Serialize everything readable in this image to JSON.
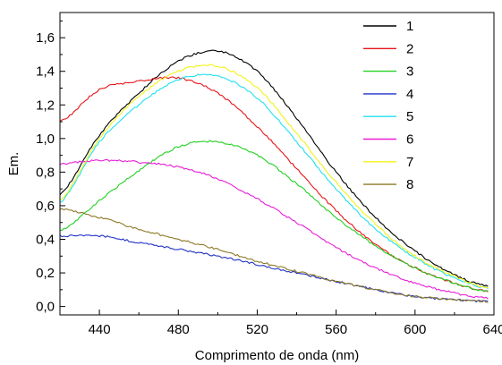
{
  "chart_data": {
    "type": "line",
    "title": "",
    "xlabel": "Comprimento de onda (nm)",
    "ylabel": "Em.",
    "xlim": [
      420,
      640
    ],
    "ylim": [
      -0.05,
      1.75
    ],
    "xticks": [
      440,
      480,
      520,
      560,
      600,
      640
    ],
    "xtick_labels": [
      "440",
      "480",
      "520",
      "560",
      "600",
      "640"
    ],
    "yticks": [
      0.0,
      0.2,
      0.4,
      0.6,
      0.8,
      1.0,
      1.2,
      1.4,
      1.6
    ],
    "ytick_labels": [
      "0,0",
      "0,2",
      "0,4",
      "0,6",
      "0,8",
      "1,0",
      "1,2",
      "1,4",
      "1,6"
    ],
    "grid": false,
    "legend_position": "top-right",
    "x": [
      420,
      440,
      460,
      480,
      500,
      520,
      540,
      560,
      580,
      600,
      620,
      637
    ],
    "series": [
      {
        "name": "1",
        "color": "#000000",
        "values": [
          0.67,
          1.02,
          1.27,
          1.46,
          1.52,
          1.4,
          1.12,
          0.8,
          0.53,
          0.33,
          0.19,
          0.12
        ]
      },
      {
        "name": "2",
        "color": "#e8141a",
        "values": [
          1.1,
          1.29,
          1.34,
          1.36,
          1.27,
          1.07,
          0.82,
          0.57,
          0.37,
          0.23,
          0.14,
          0.09
        ]
      },
      {
        "name": "3",
        "color": "#22d022",
        "values": [
          0.45,
          0.63,
          0.81,
          0.95,
          0.98,
          0.9,
          0.73,
          0.53,
          0.36,
          0.23,
          0.14,
          0.09
        ]
      },
      {
        "name": "4",
        "color": "#2232c8",
        "values": [
          0.42,
          0.42,
          0.38,
          0.34,
          0.3,
          0.25,
          0.2,
          0.15,
          0.1,
          0.06,
          0.04,
          0.03
        ]
      },
      {
        "name": "5",
        "color": "#22e0f0",
        "values": [
          0.62,
          0.98,
          1.2,
          1.35,
          1.37,
          1.24,
          0.98,
          0.7,
          0.46,
          0.29,
          0.17,
          0.11
        ]
      },
      {
        "name": "6",
        "color": "#e81ed8",
        "values": [
          0.85,
          0.87,
          0.86,
          0.83,
          0.76,
          0.64,
          0.5,
          0.35,
          0.23,
          0.14,
          0.08,
          0.05
        ]
      },
      {
        "name": "7",
        "color": "#f2f21a",
        "values": [
          0.63,
          1.0,
          1.25,
          1.4,
          1.43,
          1.3,
          1.03,
          0.74,
          0.49,
          0.3,
          0.18,
          0.11
        ]
      },
      {
        "name": "8",
        "color": "#8c7a28",
        "values": [
          0.58,
          0.53,
          0.46,
          0.4,
          0.34,
          0.27,
          0.21,
          0.15,
          0.1,
          0.06,
          0.04,
          0.03
        ]
      }
    ]
  }
}
